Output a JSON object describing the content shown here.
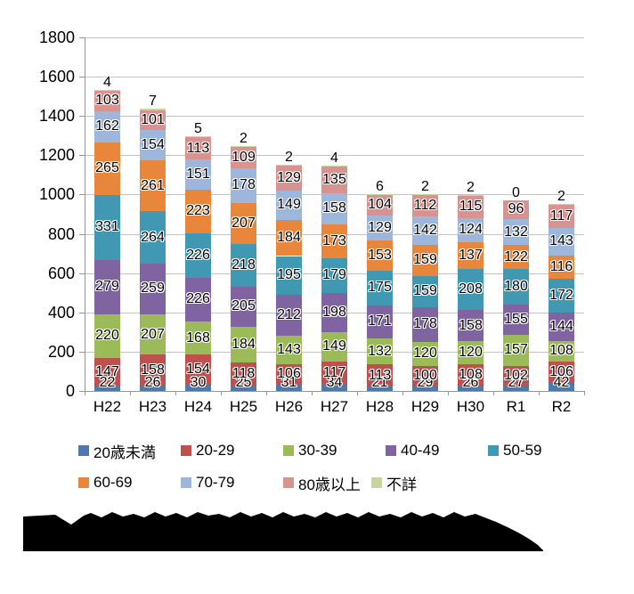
{
  "chart_data": {
    "type": "bar",
    "stacked": true,
    "title": "",
    "xlabel": "",
    "ylabel": "",
    "categories": [
      "H22",
      "H23",
      "H24",
      "H25",
      "H26",
      "H27",
      "H28",
      "H29",
      "H30",
      "R1",
      "R2"
    ],
    "series": [
      {
        "name": "20歳未満",
        "color": "#4d79ae",
        "values": [
          22,
          26,
          30,
          25,
          31,
          34,
          21,
          29,
          26,
          27,
          42
        ]
      },
      {
        "name": "20-29",
        "color": "#c0504d",
        "values": [
          147,
          158,
          154,
          118,
          106,
          117,
          113,
          100,
          108,
          102,
          106
        ]
      },
      {
        "name": "30-39",
        "color": "#9bbb59",
        "values": [
          220,
          207,
          168,
          184,
          143,
          149,
          132,
          120,
          120,
          157,
          108
        ]
      },
      {
        "name": "40-49",
        "color": "#8064a2",
        "values": [
          279,
          259,
          226,
          205,
          212,
          198,
          171,
          178,
          158,
          155,
          144
        ]
      },
      {
        "name": "50-59",
        "color": "#4198b2",
        "values": [
          331,
          264,
          226,
          218,
          195,
          179,
          175,
          159,
          208,
          180,
          172
        ]
      },
      {
        "name": "60-69",
        "color": "#e8873b",
        "values": [
          265,
          261,
          223,
          207,
          184,
          173,
          153,
          159,
          137,
          122,
          116
        ]
      },
      {
        "name": "70-79",
        "color": "#9db6db",
        "values": [
          162,
          154,
          151,
          178,
          149,
          158,
          129,
          142,
          124,
          132,
          143
        ]
      },
      {
        "name": "80歳以上",
        "color": "#d9938f",
        "values": [
          103,
          101,
          113,
          109,
          129,
          135,
          104,
          112,
          115,
          96,
          117
        ]
      },
      {
        "name": "不詳",
        "color": "#c6d6a0",
        "values": [
          4,
          7,
          5,
          2,
          2,
          4,
          6,
          2,
          2,
          0,
          2
        ],
        "label_position": "above"
      }
    ],
    "ylim": [
      0,
      1800
    ],
    "ytick_step": 200,
    "y_ticks": [
      0,
      200,
      400,
      600,
      800,
      1000,
      1200,
      1400,
      1600,
      1800
    ],
    "grid": true,
    "legend_position": "bottom",
    "legend_rows": [
      [
        "20歳未満",
        "20-29",
        "30-39",
        "40-49",
        "50-59"
      ],
      [
        "60-69",
        "70-79",
        "80歳以上",
        "不詳"
      ]
    ]
  },
  "footer": {
    "caption_redacted": true
  },
  "colors": {
    "gridline": "#c3c3c3",
    "axis": "#969696",
    "label_outline": "#ffffff",
    "redaction": "#000000"
  }
}
